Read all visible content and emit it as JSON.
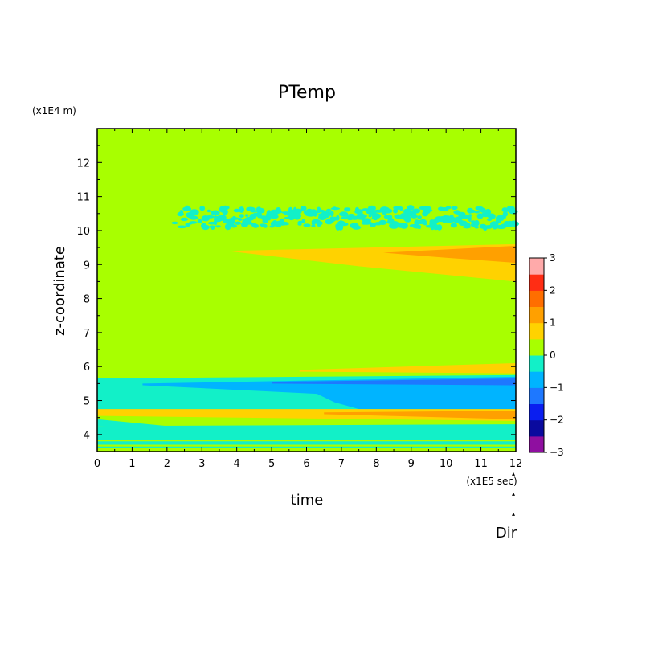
{
  "chart_data": {
    "type": "heatmap",
    "title": "PTemp",
    "xlabel": "time",
    "ylabel": "z-coordinate",
    "x_unit": "(x1E5 sec)",
    "y_unit": "(x1E4 m)",
    "xlim": [
      0,
      12
    ],
    "ylim": [
      3.5,
      13
    ],
    "x_ticks": [
      "0",
      "1",
      "2",
      "3",
      "4",
      "5",
      "6",
      "7",
      "8",
      "9",
      "10",
      "11",
      "12"
    ],
    "y_ticks": [
      "4",
      "5",
      "6",
      "7",
      "8",
      "9",
      "10",
      "11",
      "12"
    ],
    "colorbar": {
      "levels": [
        -3,
        -2.5,
        -2,
        -1.5,
        -1,
        -0.5,
        0,
        0.5,
        1,
        1.5,
        2,
        2.5,
        3
      ],
      "tick_labels": [
        "3",
        "2",
        "1",
        "0",
        "−1",
        "−2",
        "−3"
      ],
      "colors": [
        "#8f0fa0",
        "#0a0a9e",
        "#0a1ef0",
        "#1e78ff",
        "#00b4ff",
        "#12f0c8",
        "#a8ff00",
        "#ffd200",
        "#ffa000",
        "#ff6e00",
        "#ff2d14",
        "#ffaaaa"
      ]
    },
    "background_value": 0.2,
    "features": [
      {
        "value": 0.7,
        "polygon": [
          [
            3.7,
            9.4
          ],
          [
            12,
            9.6
          ],
          [
            12,
            8.5
          ],
          [
            7.5,
            8.95
          ],
          [
            3.7,
            9.4
          ]
        ]
      },
      {
        "value": 1.2,
        "polygon": [
          [
            8.2,
            9.35
          ],
          [
            12,
            9.55
          ],
          [
            12,
            9.05
          ],
          [
            10,
            9.2
          ],
          [
            8.2,
            9.35
          ]
        ]
      },
      {
        "value": -0.25,
        "polygon": [
          [
            0,
            5.65
          ],
          [
            12,
            5.75
          ],
          [
            12,
            4.7
          ],
          [
            0,
            4.6
          ]
        ]
      },
      {
        "value": -0.75,
        "polygon": [
          [
            1.3,
            5.5
          ],
          [
            12,
            5.7
          ],
          [
            12,
            4.7
          ],
          [
            7.5,
            4.75
          ],
          [
            6.8,
            4.95
          ],
          [
            6.3,
            5.2
          ],
          [
            1.3,
            5.45
          ]
        ]
      },
      {
        "value": -1.2,
        "polygon": [
          [
            5,
            5.55
          ],
          [
            12,
            5.65
          ],
          [
            12,
            5.45
          ],
          [
            5,
            5.5
          ]
        ]
      },
      {
        "value": 0.7,
        "polygon": [
          [
            5.8,
            5.9
          ],
          [
            12,
            6.1
          ],
          [
            12,
            5.8
          ],
          [
            5.8,
            5.85
          ]
        ]
      },
      {
        "value": 0.7,
        "polygon": [
          [
            0,
            4.75
          ],
          [
            12,
            4.75
          ],
          [
            12,
            4.4
          ],
          [
            0,
            4.55
          ]
        ]
      },
      {
        "value": 1.2,
        "polygon": [
          [
            6.5,
            4.65
          ],
          [
            12,
            4.7
          ],
          [
            12,
            4.45
          ],
          [
            6.5,
            4.6
          ]
        ]
      },
      {
        "value": -0.25,
        "polygon": [
          [
            0,
            4.45
          ],
          [
            2.5,
            4.2
          ],
          [
            0,
            4.25
          ]
        ]
      },
      {
        "value": -0.25,
        "polygon": [
          [
            0,
            4.25
          ],
          [
            12,
            4.3
          ],
          [
            12,
            3.85
          ],
          [
            0,
            3.85
          ]
        ]
      },
      {
        "value": -0.25,
        "polygon": [
          [
            0,
            3.8
          ],
          [
            12,
            3.8
          ],
          [
            12,
            3.7
          ],
          [
            0,
            3.7
          ]
        ]
      },
      {
        "value": -0.25,
        "polygon": [
          [
            0,
            3.65
          ],
          [
            12,
            3.65
          ],
          [
            12,
            3.6
          ],
          [
            0,
            3.6
          ]
        ]
      }
    ],
    "noise_band": {
      "value": -0.25,
      "x_range": [
        2.2,
        12
      ],
      "y_range": [
        10.0,
        10.75
      ]
    }
  },
  "bottom_right_label": "Dir"
}
